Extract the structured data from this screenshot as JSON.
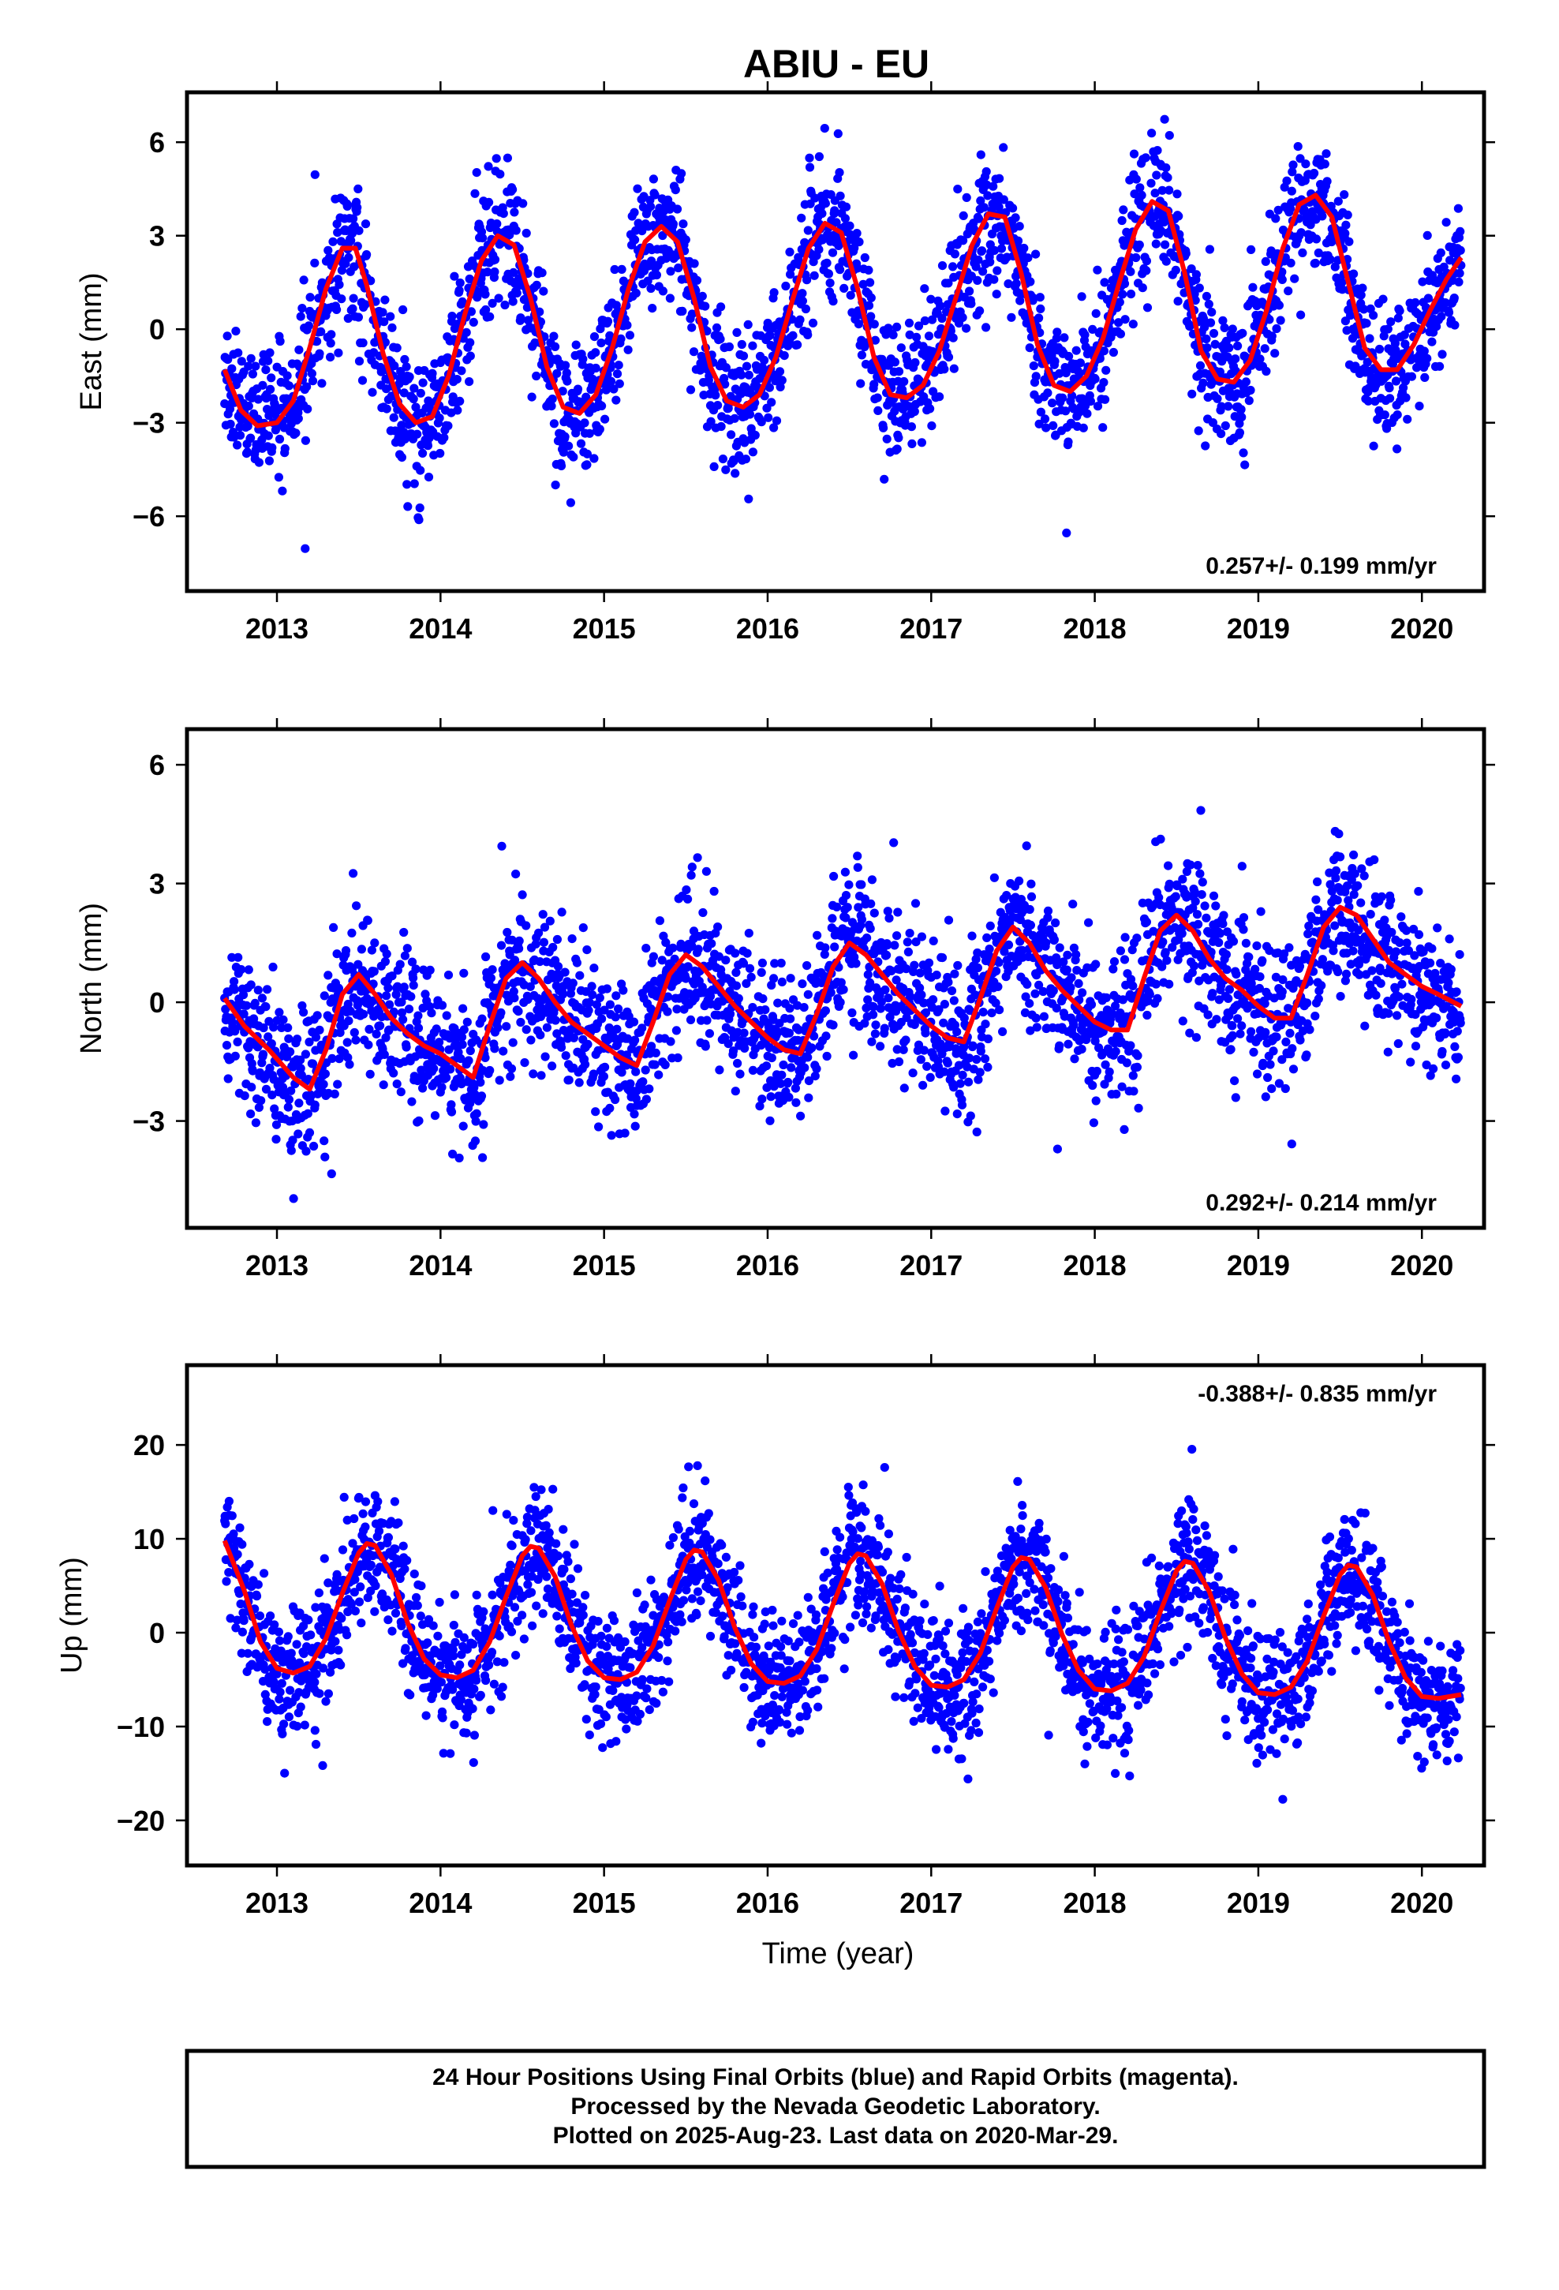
{
  "chart_data": [
    {
      "type": "scatter",
      "title": "ABIU - EU",
      "ylabel": "East (mm)",
      "xlabel": "",
      "xlim": [
        2012.45,
        2020.38
      ],
      "ylim": [
        -8.4,
        7.6
      ],
      "xticks": [
        2013,
        2014,
        2015,
        2016,
        2017,
        2018,
        2019,
        2020
      ],
      "yticks": [
        6,
        3,
        0,
        -3,
        -6
      ],
      "ytick_labels": [
        "6",
        "3",
        "0",
        "−3",
        "−6"
      ],
      "rate_label": "0.257+/- 0.199 mm/yr",
      "rate_position": "bottom-right",
      "series": [
        {
          "color": "#0000ff",
          "style": "points",
          "date_range": [
            2012.68,
            2020.24
          ]
        },
        {
          "color": "#ff0000",
          "style": "line",
          "x": [
            2012.68,
            2012.78,
            2012.88,
            2013.0,
            2013.1,
            2013.2,
            2013.3,
            2013.4,
            2013.48,
            2013.55,
            2013.65,
            2013.75,
            2013.85,
            2013.95,
            2014.05,
            2014.15,
            2014.25,
            2014.35,
            2014.45,
            2014.55,
            2014.65,
            2014.75,
            2014.85,
            2014.95,
            2015.05,
            2015.15,
            2015.25,
            2015.35,
            2015.45,
            2015.55,
            2015.65,
            2015.75,
            2015.85,
            2015.95,
            2016.05,
            2016.15,
            2016.25,
            2016.35,
            2016.45,
            2016.55,
            2016.65,
            2016.75,
            2016.85,
            2016.95,
            2017.05,
            2017.15,
            2017.25,
            2017.35,
            2017.45,
            2017.55,
            2017.65,
            2017.75,
            2017.85,
            2017.95,
            2018.05,
            2018.15,
            2018.25,
            2018.35,
            2018.45,
            2018.55,
            2018.65,
            2018.75,
            2018.85,
            2018.95,
            2019.05,
            2019.15,
            2019.25,
            2019.35,
            2019.45,
            2019.55,
            2019.65,
            2019.75,
            2019.85,
            2019.95,
            2020.05,
            2020.15,
            2020.24
          ],
          "y": [
            -1.3,
            -2.6,
            -3.1,
            -3.0,
            -2.3,
            -0.6,
            1.3,
            2.6,
            2.6,
            1.4,
            -0.8,
            -2.4,
            -3.0,
            -2.8,
            -1.5,
            0.5,
            2.2,
            3.0,
            2.7,
            1.0,
            -1.2,
            -2.5,
            -2.7,
            -2.1,
            -0.6,
            1.3,
            2.8,
            3.3,
            2.8,
            1.0,
            -1.2,
            -2.3,
            -2.5,
            -2.1,
            -0.9,
            0.9,
            2.6,
            3.4,
            3.1,
            1.3,
            -0.9,
            -2.1,
            -2.2,
            -1.8,
            -0.7,
            1.0,
            2.7,
            3.7,
            3.6,
            1.8,
            -0.5,
            -1.8,
            -2.0,
            -1.5,
            -0.3,
            1.5,
            3.2,
            4.1,
            3.8,
            1.8,
            -0.7,
            -1.6,
            -1.7,
            -1.0,
            0.6,
            2.6,
            4.0,
            4.3,
            3.6,
            1.5,
            -0.6,
            -1.3,
            -1.3,
            -0.5,
            0.6,
            1.6,
            2.3
          ]
        }
      ]
    },
    {
      "type": "scatter",
      "ylabel": "North (mm)",
      "xlabel": "",
      "xlim": [
        2012.45,
        2020.38
      ],
      "ylim": [
        -5.7,
        6.9
      ],
      "xticks": [
        2013,
        2014,
        2015,
        2016,
        2017,
        2018,
        2019,
        2020
      ],
      "yticks": [
        6,
        3,
        0,
        -3
      ],
      "ytick_labels": [
        "6",
        "3",
        "0",
        "−3"
      ],
      "rate_label": "0.292+/- 0.214 mm/yr",
      "rate_position": "bottom-right",
      "series": [
        {
          "color": "#0000ff",
          "style": "points",
          "date_range": [
            2012.68,
            2020.24
          ]
        },
        {
          "color": "#ff0000",
          "style": "line",
          "x": [
            2012.68,
            2012.8,
            2012.95,
            2013.1,
            2013.2,
            2013.3,
            2013.4,
            2013.5,
            2013.6,
            2013.7,
            2013.8,
            2013.9,
            2014.0,
            2014.1,
            2014.2,
            2014.3,
            2014.4,
            2014.5,
            2014.6,
            2014.7,
            2014.8,
            2014.9,
            2015.0,
            2015.1,
            2015.2,
            2015.3,
            2015.4,
            2015.5,
            2015.6,
            2015.7,
            2015.8,
            2015.9,
            2016.0,
            2016.1,
            2016.2,
            2016.3,
            2016.4,
            2016.5,
            2016.6,
            2016.7,
            2016.8,
            2016.9,
            2017.0,
            2017.1,
            2017.2,
            2017.3,
            2017.4,
            2017.5,
            2017.6,
            2017.7,
            2017.8,
            2017.9,
            2018.0,
            2018.1,
            2018.2,
            2018.3,
            2018.4,
            2018.5,
            2018.6,
            2018.7,
            2018.8,
            2018.9,
            2019.0,
            2019.1,
            2019.2,
            2019.3,
            2019.4,
            2019.5,
            2019.6,
            2019.7,
            2019.8,
            2019.9,
            2020.0,
            2020.1,
            2020.24
          ],
          "y": [
            0.1,
            -0.6,
            -1.2,
            -1.9,
            -2.2,
            -1.2,
            0.2,
            0.7,
            0.2,
            -0.4,
            -0.8,
            -1.1,
            -1.3,
            -1.6,
            -1.9,
            -0.6,
            0.6,
            1.0,
            0.6,
            0.0,
            -0.5,
            -0.8,
            -1.1,
            -1.4,
            -1.6,
            -0.5,
            0.7,
            1.2,
            0.9,
            0.4,
            -0.1,
            -0.5,
            -0.9,
            -1.2,
            -1.3,
            -0.3,
            0.9,
            1.5,
            1.2,
            0.7,
            0.2,
            -0.2,
            -0.6,
            -0.9,
            -1.0,
            0.1,
            1.3,
            1.9,
            1.5,
            0.8,
            0.3,
            -0.1,
            -0.5,
            -0.7,
            -0.7,
            0.6,
            1.8,
            2.2,
            1.8,
            1.1,
            0.6,
            0.3,
            -0.1,
            -0.4,
            -0.4,
            0.7,
            1.9,
            2.4,
            2.2,
            1.6,
            1.0,
            0.7,
            0.4,
            0.2,
            -0.1
          ]
        }
      ]
    },
    {
      "type": "scatter",
      "ylabel": "Up (mm)",
      "xlabel": "Time (year)",
      "xlim": [
        2012.45,
        2020.38
      ],
      "ylim": [
        -24.8,
        28.5
      ],
      "xticks": [
        2013,
        2014,
        2015,
        2016,
        2017,
        2018,
        2019,
        2020
      ],
      "yticks": [
        20,
        10,
        0,
        -10,
        -20
      ],
      "ytick_labels": [
        "20",
        "10",
        "0",
        "−10",
        "−20"
      ],
      "rate_label": "-0.388+/- 0.835 mm/yr",
      "rate_position": "top-right",
      "series": [
        {
          "color": "#0000ff",
          "style": "points",
          "date_range": [
            2012.68,
            2020.24
          ]
        },
        {
          "color": "#ff0000",
          "style": "line",
          "x": [
            2012.68,
            2012.8,
            2012.9,
            2013.0,
            2013.1,
            2013.2,
            2013.3,
            2013.4,
            2013.5,
            2013.55,
            2013.6,
            2013.7,
            2013.8,
            2013.9,
            2014.0,
            2014.1,
            2014.2,
            2014.3,
            2014.4,
            2014.5,
            2014.55,
            2014.6,
            2014.7,
            2014.8,
            2014.9,
            2015.0,
            2015.1,
            2015.2,
            2015.3,
            2015.4,
            2015.5,
            2015.55,
            2015.6,
            2015.7,
            2015.8,
            2015.9,
            2016.0,
            2016.1,
            2016.2,
            2016.3,
            2016.4,
            2016.5,
            2016.55,
            2016.6,
            2016.7,
            2016.8,
            2016.9,
            2017.0,
            2017.1,
            2017.2,
            2017.3,
            2017.4,
            2017.5,
            2017.55,
            2017.6,
            2017.7,
            2017.8,
            2017.9,
            2018.0,
            2018.1,
            2018.2,
            2018.3,
            2018.4,
            2018.5,
            2018.55,
            2018.6,
            2018.7,
            2018.8,
            2018.9,
            2019.0,
            2019.1,
            2019.2,
            2019.3,
            2019.4,
            2019.5,
            2019.55,
            2019.6,
            2019.7,
            2019.8,
            2019.9,
            2020.0,
            2020.1,
            2020.24
          ],
          "y": [
            9.8,
            4.5,
            -1.0,
            -3.8,
            -4.3,
            -3.6,
            -0.6,
            4.2,
            8.5,
            9.5,
            9.3,
            6.2,
            1.0,
            -2.8,
            -4.5,
            -4.8,
            -4.0,
            -1.0,
            3.8,
            8.2,
            9.2,
            9.0,
            6.0,
            0.8,
            -3.0,
            -4.8,
            -5.0,
            -4.2,
            -1.4,
            3.4,
            7.8,
            8.8,
            8.6,
            5.6,
            0.5,
            -3.3,
            -5.2,
            -5.4,
            -4.6,
            -1.8,
            3.0,
            7.4,
            8.4,
            8.2,
            5.2,
            0.2,
            -3.6,
            -5.6,
            -5.8,
            -5.0,
            -2.2,
            2.6,
            7.0,
            8.0,
            7.8,
            4.8,
            -0.2,
            -4.0,
            -6.0,
            -6.2,
            -5.4,
            -2.6,
            2.2,
            6.6,
            7.6,
            7.4,
            4.4,
            -0.6,
            -4.4,
            -6.4,
            -6.6,
            -5.8,
            -3.0,
            1.8,
            6.2,
            7.2,
            7.0,
            4.0,
            -1.0,
            -4.8,
            -6.8,
            -7.0,
            -6.6
          ]
        }
      ]
    }
  ],
  "caption": {
    "line1": "24 Hour Positions Using Final Orbits (blue) and Rapid Orbits (magenta).",
    "line2": "Processed by the Nevada Geodetic Laboratory.",
    "line3": "Plotted on 2025-Aug-23. Last data on 2020-Mar-29."
  }
}
